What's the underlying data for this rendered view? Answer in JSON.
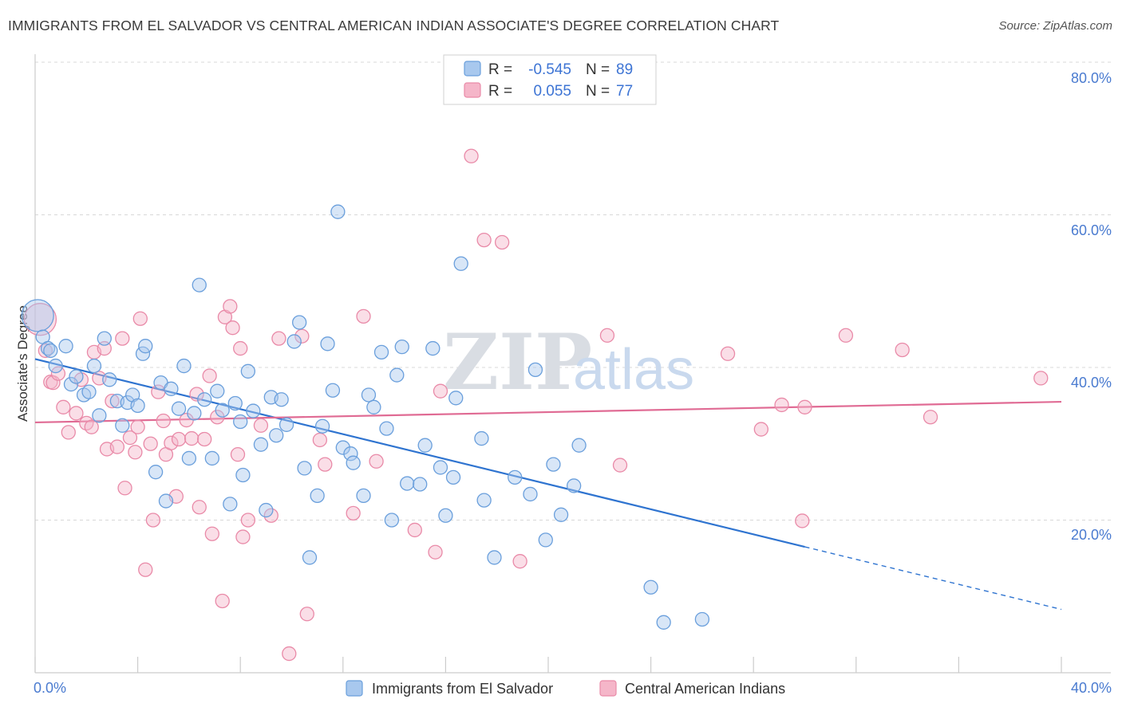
{
  "title": "IMMIGRANTS FROM EL SALVADOR VS CENTRAL AMERICAN INDIAN ASSOCIATE'S DEGREE CORRELATION CHART",
  "source": "Source: ZipAtlas.com",
  "watermark": {
    "zip": "ZIP",
    "atlas": "atlas"
  },
  "legend": {
    "rows": [
      {
        "r_label": "R =",
        "r_value": "-0.545",
        "n_label": "N =",
        "n_value": "89"
      },
      {
        "r_label": "R =",
        "r_value": "0.055",
        "n_label": "N =",
        "n_value": "77"
      }
    ]
  },
  "bottom_legend": [
    "Immigrants from El Salvador",
    "Central American Indians"
  ],
  "colors": {
    "blue_fill": "#a8c8ee",
    "blue_stroke": "#6a9fdc",
    "blue_line": "#2f74d0",
    "pink_fill": "#f5b6c9",
    "pink_stroke": "#e98aa8",
    "pink_line": "#e06b94",
    "grid": "#d8d8d8",
    "axis_label": "#4a7bd0"
  },
  "chart_data": {
    "type": "scatter",
    "title": "IMMIGRANTS FROM EL SALVADOR VS CENTRAL AMERICAN INDIAN ASSOCIATE'S DEGREE CORRELATION CHART",
    "xlabel": "",
    "ylabel": "Associate's Degree",
    "xlim": [
      0,
      40
    ],
    "ylim": [
      0,
      80
    ],
    "x_tick_labels": [
      "0.0%",
      "40.0%"
    ],
    "y_ticks": [
      20,
      40,
      60,
      80
    ],
    "y_tick_labels": [
      "20.0%",
      "40.0%",
      "60.0%",
      "80.0%"
    ],
    "grid": true,
    "series": [
      {
        "name": "Immigrants from El Salvador",
        "color": "#a8c8ee",
        "R": -0.545,
        "N": 89,
        "trend": {
          "x0": 0,
          "y0": 41.1,
          "x1": 30,
          "y1": 16.5,
          "dash_to_x": 40,
          "dash_to_y": 8.3
        },
        "points": [
          [
            0.1,
            46.8
          ],
          [
            0.3,
            44.0
          ],
          [
            0.5,
            42.5
          ],
          [
            0.8,
            40.2
          ],
          [
            1.2,
            42.8
          ],
          [
            1.4,
            37.8
          ],
          [
            1.6,
            38.8
          ],
          [
            1.9,
            36.4
          ],
          [
            2.1,
            36.8
          ],
          [
            2.3,
            40.2
          ],
          [
            2.5,
            33.7
          ],
          [
            2.7,
            43.8
          ],
          [
            2.9,
            38.4
          ],
          [
            3.2,
            35.6
          ],
          [
            3.4,
            32.4
          ],
          [
            3.6,
            35.4
          ],
          [
            3.8,
            36.4
          ],
          [
            4.0,
            35.0
          ],
          [
            4.2,
            41.8
          ],
          [
            4.3,
            42.8
          ],
          [
            4.7,
            26.3
          ],
          [
            4.9,
            38.0
          ],
          [
            5.1,
            22.5
          ],
          [
            5.3,
            37.2
          ],
          [
            5.6,
            34.6
          ],
          [
            5.8,
            40.2
          ],
          [
            6.0,
            28.1
          ],
          [
            6.2,
            34.0
          ],
          [
            6.4,
            50.8
          ],
          [
            6.6,
            35.8
          ],
          [
            6.9,
            28.1
          ],
          [
            7.1,
            36.9
          ],
          [
            7.3,
            34.4
          ],
          [
            7.6,
            22.1
          ],
          [
            7.8,
            35.3
          ],
          [
            8.0,
            32.9
          ],
          [
            8.1,
            25.9
          ],
          [
            8.3,
            39.5
          ],
          [
            8.5,
            34.3
          ],
          [
            8.8,
            29.9
          ],
          [
            9.0,
            21.3
          ],
          [
            9.2,
            36.1
          ],
          [
            9.4,
            31.1
          ],
          [
            9.6,
            35.8
          ],
          [
            9.8,
            32.5
          ],
          [
            10.1,
            43.4
          ],
          [
            10.3,
            45.9
          ],
          [
            10.5,
            26.8
          ],
          [
            10.7,
            15.1
          ],
          [
            11.0,
            23.2
          ],
          [
            11.2,
            32.3
          ],
          [
            11.4,
            43.1
          ],
          [
            11.6,
            37.0
          ],
          [
            11.8,
            60.4
          ],
          [
            12.0,
            29.5
          ],
          [
            12.3,
            28.7
          ],
          [
            12.4,
            27.5
          ],
          [
            12.8,
            23.2
          ],
          [
            13.0,
            36.4
          ],
          [
            13.2,
            34.8
          ],
          [
            13.5,
            42.0
          ],
          [
            13.7,
            32.0
          ],
          [
            13.9,
            20.0
          ],
          [
            14.1,
            39.0
          ],
          [
            14.3,
            42.7
          ],
          [
            14.5,
            24.8
          ],
          [
            15.0,
            24.7
          ],
          [
            15.2,
            29.8
          ],
          [
            15.5,
            42.5
          ],
          [
            15.8,
            26.9
          ],
          [
            16.0,
            20.6
          ],
          [
            16.3,
            25.6
          ],
          [
            16.4,
            36.0
          ],
          [
            16.6,
            53.6
          ],
          [
            17.4,
            30.7
          ],
          [
            17.5,
            22.6
          ],
          [
            17.9,
            15.1
          ],
          [
            18.7,
            25.6
          ],
          [
            19.3,
            23.4
          ],
          [
            19.5,
            39.7
          ],
          [
            19.9,
            17.4
          ],
          [
            20.2,
            27.3
          ],
          [
            20.5,
            20.7
          ],
          [
            21.0,
            24.5
          ],
          [
            21.2,
            29.8
          ],
          [
            24.0,
            11.2
          ],
          [
            24.5,
            6.6
          ],
          [
            26.0,
            7.0
          ],
          [
            0.6,
            42.2
          ]
        ]
      },
      {
        "name": "Central American Indians",
        "color": "#f5b6c9",
        "R": 0.055,
        "N": 77,
        "trend": {
          "x0": 0,
          "y0": 32.8,
          "x1": 40,
          "y1": 35.5
        },
        "points": [
          [
            0.2,
            46.3
          ],
          [
            0.4,
            42.2
          ],
          [
            0.6,
            38.1
          ],
          [
            0.7,
            38.0
          ],
          [
            0.9,
            39.2
          ],
          [
            1.1,
            34.8
          ],
          [
            1.3,
            31.5
          ],
          [
            1.6,
            34.0
          ],
          [
            1.8,
            38.4
          ],
          [
            2.0,
            32.7
          ],
          [
            2.2,
            32.2
          ],
          [
            2.3,
            42.0
          ],
          [
            2.5,
            38.6
          ],
          [
            2.7,
            42.5
          ],
          [
            2.8,
            29.3
          ],
          [
            3.0,
            35.6
          ],
          [
            3.2,
            29.6
          ],
          [
            3.4,
            43.8
          ],
          [
            3.5,
            24.2
          ],
          [
            3.7,
            30.8
          ],
          [
            3.9,
            28.9
          ],
          [
            4.0,
            32.2
          ],
          [
            4.1,
            46.4
          ],
          [
            4.3,
            13.5
          ],
          [
            4.5,
            30.0
          ],
          [
            4.6,
            20.0
          ],
          [
            4.8,
            36.8
          ],
          [
            5.0,
            33.0
          ],
          [
            5.1,
            28.6
          ],
          [
            5.3,
            30.1
          ],
          [
            5.5,
            23.1
          ],
          [
            5.6,
            30.6
          ],
          [
            5.9,
            33.1
          ],
          [
            6.1,
            30.7
          ],
          [
            6.3,
            36.5
          ],
          [
            6.4,
            21.7
          ],
          [
            6.6,
            30.6
          ],
          [
            6.8,
            38.9
          ],
          [
            6.9,
            18.2
          ],
          [
            7.1,
            33.5
          ],
          [
            7.3,
            9.4
          ],
          [
            7.4,
            46.6
          ],
          [
            7.6,
            48.0
          ],
          [
            7.7,
            45.2
          ],
          [
            7.9,
            28.6
          ],
          [
            8.0,
            42.5
          ],
          [
            8.1,
            17.8
          ],
          [
            8.3,
            20.0
          ],
          [
            8.8,
            32.4
          ],
          [
            9.2,
            20.6
          ],
          [
            9.5,
            43.8
          ],
          [
            9.9,
            2.5
          ],
          [
            10.4,
            44.1
          ],
          [
            10.6,
            7.7
          ],
          [
            11.1,
            30.5
          ],
          [
            11.3,
            27.3
          ],
          [
            12.4,
            20.9
          ],
          [
            12.8,
            46.7
          ],
          [
            13.3,
            27.7
          ],
          [
            14.8,
            18.7
          ],
          [
            15.6,
            15.8
          ],
          [
            15.8,
            36.9
          ],
          [
            17.0,
            67.7
          ],
          [
            17.5,
            56.7
          ],
          [
            18.2,
            56.4
          ],
          [
            18.9,
            14.6
          ],
          [
            22.3,
            44.2
          ],
          [
            22.8,
            27.2
          ],
          [
            27.0,
            41.8
          ],
          [
            28.3,
            31.9
          ],
          [
            29.1,
            35.1
          ],
          [
            29.9,
            19.9
          ],
          [
            30.0,
            34.8
          ],
          [
            31.6,
            44.2
          ],
          [
            33.8,
            42.3
          ],
          [
            34.9,
            33.5
          ],
          [
            39.2,
            38.6
          ]
        ]
      }
    ]
  }
}
